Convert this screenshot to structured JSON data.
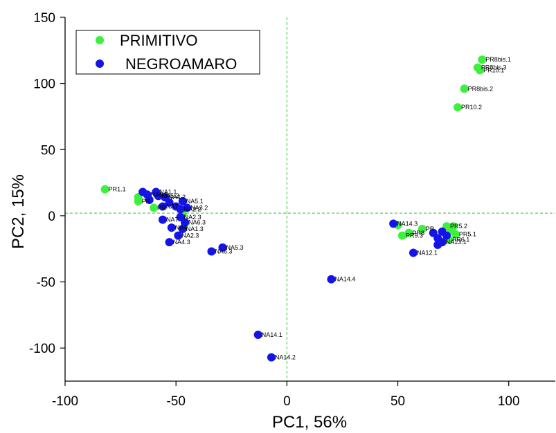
{
  "chart_data": {
    "type": "scatter",
    "title": "",
    "xlabel": "PC1, 56%",
    "ylabel": "PC2, 15%",
    "xlim": [
      -100,
      121
    ],
    "ylim": [
      -125,
      150
    ],
    "xticks": [
      "-100",
      "-50",
      "0",
      "50",
      "100"
    ],
    "yticks": [
      "150",
      "100",
      "50",
      "0",
      "-50",
      "-100"
    ],
    "reference_lines": {
      "x": 0,
      "y": 2,
      "style": "dashed",
      "color": "#22cc22"
    },
    "legend": {
      "placement": "top-left",
      "entries": [
        "PRIMITIVO",
        "NEGROAMARO"
      ]
    },
    "series": [
      {
        "name": "PRIMITIVO",
        "color": "#3ef03e",
        "points": [
          {
            "x": -82,
            "y": 20,
            "label": "PR1.1"
          },
          {
            "x": -67,
            "y": 14,
            "label": ""
          },
          {
            "x": -67,
            "y": 11,
            "label": "PR"
          },
          {
            "x": -60,
            "y": 6,
            "label": "PR"
          },
          {
            "x": -47,
            "y": 1,
            "label": ""
          },
          {
            "x": -46,
            "y": -6,
            "label": ""
          },
          {
            "x": 88,
            "y": 118,
            "label": "PR8bis.1"
          },
          {
            "x": 86,
            "y": 112,
            "label": "PR8bis.3"
          },
          {
            "x": 87,
            "y": 110,
            "label": "PR10.1"
          },
          {
            "x": 80,
            "y": 96,
            "label": "PR8bis.2"
          },
          {
            "x": 77,
            "y": 82,
            "label": "PR10.2"
          },
          {
            "x": 50,
            "y": -7,
            "label": ""
          },
          {
            "x": 61,
            "y": -10,
            "label": "PR"
          },
          {
            "x": 55,
            "y": -13,
            "label": "PR8"
          },
          {
            "x": 52,
            "y": -15,
            "label": "PR9.3"
          },
          {
            "x": 72,
            "y": -8,
            "label": "PR5.2"
          },
          {
            "x": 75,
            "y": -8,
            "label": ""
          },
          {
            "x": 74,
            "y": -11,
            "label": ""
          },
          {
            "x": 76,
            "y": -14,
            "label": "PR5.1"
          },
          {
            "x": 73,
            "y": -18,
            "label": "PR6.1"
          }
        ]
      },
      {
        "name": "NEGROAMARO",
        "color": "#1414e6",
        "points": [
          {
            "x": -65,
            "y": 18,
            "label": ""
          },
          {
            "x": -63,
            "y": 16,
            "label": "NA6.1"
          },
          {
            "x": -59,
            "y": 18,
            "label": "NA1.1"
          },
          {
            "x": -62,
            "y": 12,
            "label": ""
          },
          {
            "x": -58,
            "y": 15,
            "label": "NA5.2"
          },
          {
            "x": -55,
            "y": 14,
            "label": "NA4.2"
          },
          {
            "x": -53,
            "y": 10,
            "label": ""
          },
          {
            "x": -56,
            "y": 7,
            "label": "NA7"
          },
          {
            "x": -47,
            "y": 11,
            "label": "NA5.1"
          },
          {
            "x": -50,
            "y": 7,
            "label": ""
          },
          {
            "x": -48,
            "y": 5,
            "label": "NA2.2"
          },
          {
            "x": -45,
            "y": 6,
            "label": "NA3.2"
          },
          {
            "x": -48,
            "y": -1,
            "label": "NA2.3"
          },
          {
            "x": -46,
            "y": -5,
            "label": "NA6.3"
          },
          {
            "x": -56,
            "y": -3,
            "label": "NA7"
          },
          {
            "x": -52,
            "y": -9,
            "label": "NA4"
          },
          {
            "x": -47,
            "y": -10,
            "label": "NA1.3"
          },
          {
            "x": -49,
            "y": -15,
            "label": "NA2.3"
          },
          {
            "x": -53,
            "y": -20,
            "label": "NA4.3"
          },
          {
            "x": -29,
            "y": -24,
            "label": "NA5.3"
          },
          {
            "x": -34,
            "y": -27,
            "label": "NA6.3"
          },
          {
            "x": 48,
            "y": -6,
            "label": "NA14.3"
          },
          {
            "x": 66,
            "y": -13,
            "label": ""
          },
          {
            "x": 70,
            "y": -12,
            "label": ""
          },
          {
            "x": 72,
            "y": -15,
            "label": ""
          },
          {
            "x": 68,
            "y": -17,
            "label": ""
          },
          {
            "x": 70,
            "y": -20,
            "label": "NA13.1"
          },
          {
            "x": 68,
            "y": -22,
            "label": ""
          },
          {
            "x": 57,
            "y": -28,
            "label": "NA12.1"
          },
          {
            "x": 20,
            "y": -48,
            "label": "NA14.4"
          },
          {
            "x": -13,
            "y": -90,
            "label": "NA14.1"
          },
          {
            "x": -7,
            "y": -107,
            "label": "NA14.2"
          }
        ]
      }
    ]
  }
}
